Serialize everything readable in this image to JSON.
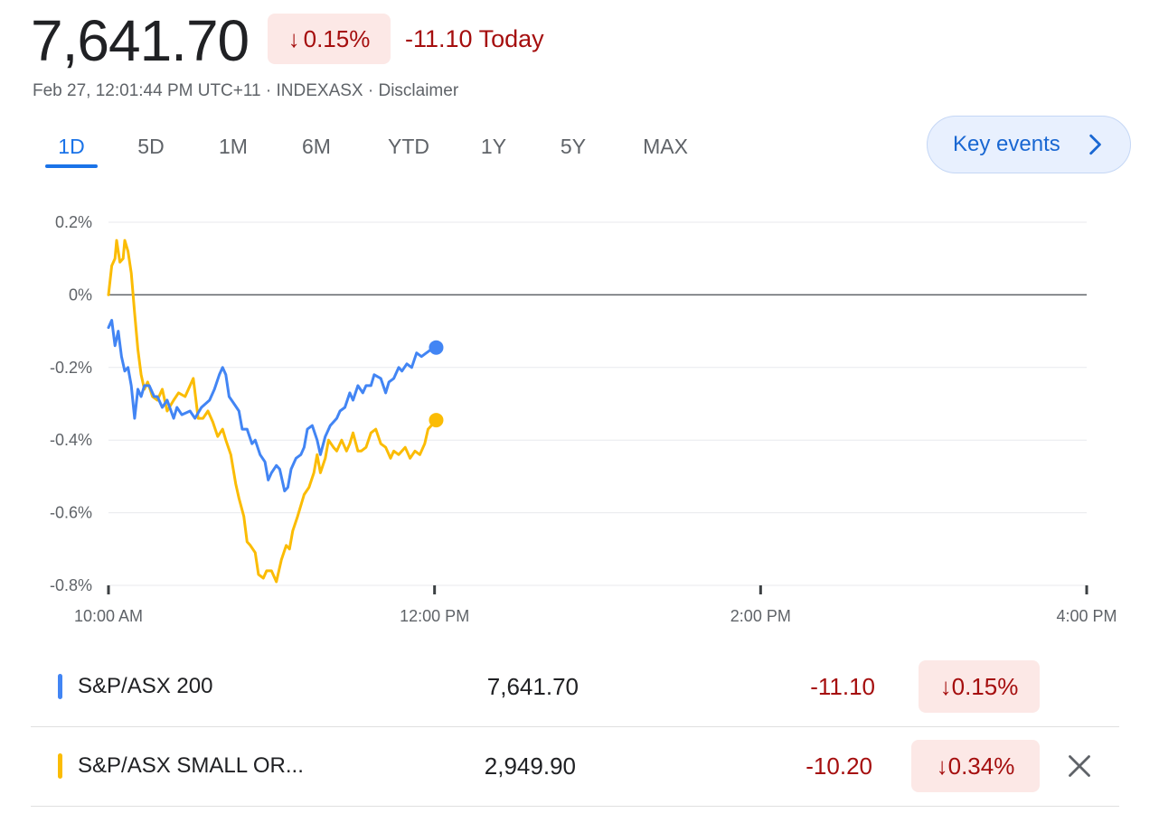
{
  "header": {
    "price": "7,641.70",
    "badge_arrow": "↓",
    "badge_pct": "0.15%",
    "change_today": "-11.10 Today",
    "meta_time": "Feb 27, 12:01:44 PM UTC+11",
    "meta_sep": " · ",
    "meta_exchange": "INDEXASX",
    "meta_disclaimer": "Disclaimer"
  },
  "ranges": [
    {
      "label": "1D",
      "active": true
    },
    {
      "label": "5D"
    },
    {
      "label": "1M"
    },
    {
      "label": "6M"
    },
    {
      "label": "YTD"
    },
    {
      "label": "1Y"
    },
    {
      "label": "5Y"
    },
    {
      "label": "MAX"
    }
  ],
  "key_events": {
    "label": "Key events",
    "icon": "chevron-right-icon"
  },
  "colors": {
    "blue": "#4285f4",
    "yellow": "#fbbc04",
    "negative": "#a50e0e",
    "negative_bg": "#fce8e6",
    "accent": "#1a73e8"
  },
  "chart_data": {
    "type": "line",
    "y_tick_labels": [
      "0.2%",
      "0%",
      "-0.2%",
      "-0.4%",
      "-0.6%",
      "-0.8%"
    ],
    "y_ticks": [
      0.2,
      0,
      -0.2,
      -0.4,
      -0.6,
      -0.8
    ],
    "ylim": [
      -0.8,
      0.2
    ],
    "x_tick_labels": [
      "10:00 AM",
      "12:00 PM",
      "2:00 PM",
      "4:00 PM"
    ],
    "x_ticks_hours": [
      10,
      12,
      14,
      16
    ],
    "xlim_hours": [
      10,
      16
    ],
    "baseline": 0,
    "grid": true,
    "series": [
      {
        "name": "S&P/ASX 200",
        "color": "#4285f4",
        "points": [
          [
            10.0,
            -0.09
          ],
          [
            10.02,
            -0.07
          ],
          [
            10.04,
            -0.14
          ],
          [
            10.06,
            -0.1
          ],
          [
            10.08,
            -0.17
          ],
          [
            10.1,
            -0.21
          ],
          [
            10.12,
            -0.2
          ],
          [
            10.14,
            -0.25
          ],
          [
            10.16,
            -0.34
          ],
          [
            10.18,
            -0.26
          ],
          [
            10.2,
            -0.28
          ],
          [
            10.22,
            -0.25
          ],
          [
            10.25,
            -0.25
          ],
          [
            10.28,
            -0.28
          ],
          [
            10.3,
            -0.28
          ],
          [
            10.33,
            -0.31
          ],
          [
            10.36,
            -0.29
          ],
          [
            10.4,
            -0.34
          ],
          [
            10.42,
            -0.31
          ],
          [
            10.45,
            -0.33
          ],
          [
            10.5,
            -0.32
          ],
          [
            10.53,
            -0.34
          ],
          [
            10.57,
            -0.31
          ],
          [
            10.62,
            -0.29
          ],
          [
            10.65,
            -0.26
          ],
          [
            10.68,
            -0.22
          ],
          [
            10.7,
            -0.2
          ],
          [
            10.72,
            -0.22
          ],
          [
            10.74,
            -0.28
          ],
          [
            10.77,
            -0.3
          ],
          [
            10.8,
            -0.32
          ],
          [
            10.82,
            -0.37
          ],
          [
            10.85,
            -0.37
          ],
          [
            10.88,
            -0.41
          ],
          [
            10.9,
            -0.4
          ],
          [
            10.93,
            -0.44
          ],
          [
            10.96,
            -0.46
          ],
          [
            10.98,
            -0.51
          ],
          [
            11.0,
            -0.49
          ],
          [
            11.03,
            -0.47
          ],
          [
            11.05,
            -0.48
          ],
          [
            11.08,
            -0.54
          ],
          [
            11.1,
            -0.53
          ],
          [
            11.12,
            -0.48
          ],
          [
            11.15,
            -0.45
          ],
          [
            11.18,
            -0.44
          ],
          [
            11.2,
            -0.42
          ],
          [
            11.22,
            -0.37
          ],
          [
            11.25,
            -0.36
          ],
          [
            11.28,
            -0.4
          ],
          [
            11.3,
            -0.44
          ],
          [
            11.33,
            -0.39
          ],
          [
            11.36,
            -0.36
          ],
          [
            11.4,
            -0.34
          ],
          [
            11.42,
            -0.32
          ],
          [
            11.45,
            -0.31
          ],
          [
            11.48,
            -0.27
          ],
          [
            11.5,
            -0.29
          ],
          [
            11.53,
            -0.25
          ],
          [
            11.56,
            -0.27
          ],
          [
            11.58,
            -0.25
          ],
          [
            11.61,
            -0.25
          ],
          [
            11.63,
            -0.22
          ],
          [
            11.67,
            -0.23
          ],
          [
            11.7,
            -0.27
          ],
          [
            11.72,
            -0.24
          ],
          [
            11.75,
            -0.23
          ],
          [
            11.78,
            -0.2
          ],
          [
            11.8,
            -0.21
          ],
          [
            11.83,
            -0.19
          ],
          [
            11.86,
            -0.2
          ],
          [
            11.89,
            -0.16
          ],
          [
            11.92,
            -0.17
          ],
          [
            11.95,
            -0.16
          ],
          [
            11.98,
            -0.15
          ],
          [
            12.01,
            -0.145
          ]
        ]
      },
      {
        "name": "S&P/ASX SMALL OR...",
        "color": "#fbbc04",
        "points": [
          [
            10.0,
            0.0
          ],
          [
            10.02,
            0.08
          ],
          [
            10.04,
            0.1
          ],
          [
            10.05,
            0.15
          ],
          [
            10.07,
            0.09
          ],
          [
            10.09,
            0.1
          ],
          [
            10.1,
            0.15
          ],
          [
            10.12,
            0.12
          ],
          [
            10.14,
            0.06
          ],
          [
            10.16,
            -0.05
          ],
          [
            10.18,
            -0.15
          ],
          [
            10.2,
            -0.22
          ],
          [
            10.22,
            -0.26
          ],
          [
            10.24,
            -0.24
          ],
          [
            10.27,
            -0.28
          ],
          [
            10.3,
            -0.29
          ],
          [
            10.33,
            -0.26
          ],
          [
            10.36,
            -0.32
          ],
          [
            10.4,
            -0.29
          ],
          [
            10.43,
            -0.27
          ],
          [
            10.47,
            -0.28
          ],
          [
            10.5,
            -0.25
          ],
          [
            10.52,
            -0.23
          ],
          [
            10.55,
            -0.34
          ],
          [
            10.58,
            -0.34
          ],
          [
            10.61,
            -0.32
          ],
          [
            10.64,
            -0.35
          ],
          [
            10.67,
            -0.39
          ],
          [
            10.7,
            -0.37
          ],
          [
            10.72,
            -0.4
          ],
          [
            10.75,
            -0.44
          ],
          [
            10.78,
            -0.52
          ],
          [
            10.8,
            -0.56
          ],
          [
            10.83,
            -0.61
          ],
          [
            10.85,
            -0.68
          ],
          [
            10.87,
            -0.69
          ],
          [
            10.9,
            -0.71
          ],
          [
            10.92,
            -0.77
          ],
          [
            10.95,
            -0.78
          ],
          [
            10.97,
            -0.76
          ],
          [
            11.0,
            -0.76
          ],
          [
            11.03,
            -0.79
          ],
          [
            11.06,
            -0.73
          ],
          [
            11.09,
            -0.69
          ],
          [
            11.11,
            -0.7
          ],
          [
            11.13,
            -0.65
          ],
          [
            11.16,
            -0.61
          ],
          [
            11.2,
            -0.55
          ],
          [
            11.23,
            -0.53
          ],
          [
            11.26,
            -0.49
          ],
          [
            11.28,
            -0.44
          ],
          [
            11.3,
            -0.49
          ],
          [
            11.33,
            -0.45
          ],
          [
            11.35,
            -0.4
          ],
          [
            11.38,
            -0.42
          ],
          [
            11.4,
            -0.43
          ],
          [
            11.43,
            -0.4
          ],
          [
            11.46,
            -0.43
          ],
          [
            11.48,
            -0.41
          ],
          [
            11.5,
            -0.38
          ],
          [
            11.53,
            -0.43
          ],
          [
            11.55,
            -0.43
          ],
          [
            11.58,
            -0.42
          ],
          [
            11.61,
            -0.38
          ],
          [
            11.64,
            -0.37
          ],
          [
            11.67,
            -0.41
          ],
          [
            11.7,
            -0.42
          ],
          [
            11.73,
            -0.45
          ],
          [
            11.75,
            -0.43
          ],
          [
            11.78,
            -0.44
          ],
          [
            11.82,
            -0.42
          ],
          [
            11.85,
            -0.45
          ],
          [
            11.88,
            -0.43
          ],
          [
            11.91,
            -0.44
          ],
          [
            11.94,
            -0.41
          ],
          [
            11.96,
            -0.37
          ],
          [
            12.01,
            -0.345
          ]
        ]
      }
    ]
  },
  "legend": [
    {
      "name": "S&P/ASX 200",
      "color": "#4285f4",
      "value": "7,641.70",
      "change": "-11.10",
      "arrow": "↓",
      "pct": "0.15%"
    },
    {
      "name": "S&P/ASX SMALL OR...",
      "color": "#fbbc04",
      "value": "2,949.90",
      "change": "-10.20",
      "arrow": "↓",
      "pct": "0.34%",
      "removable": true
    }
  ]
}
